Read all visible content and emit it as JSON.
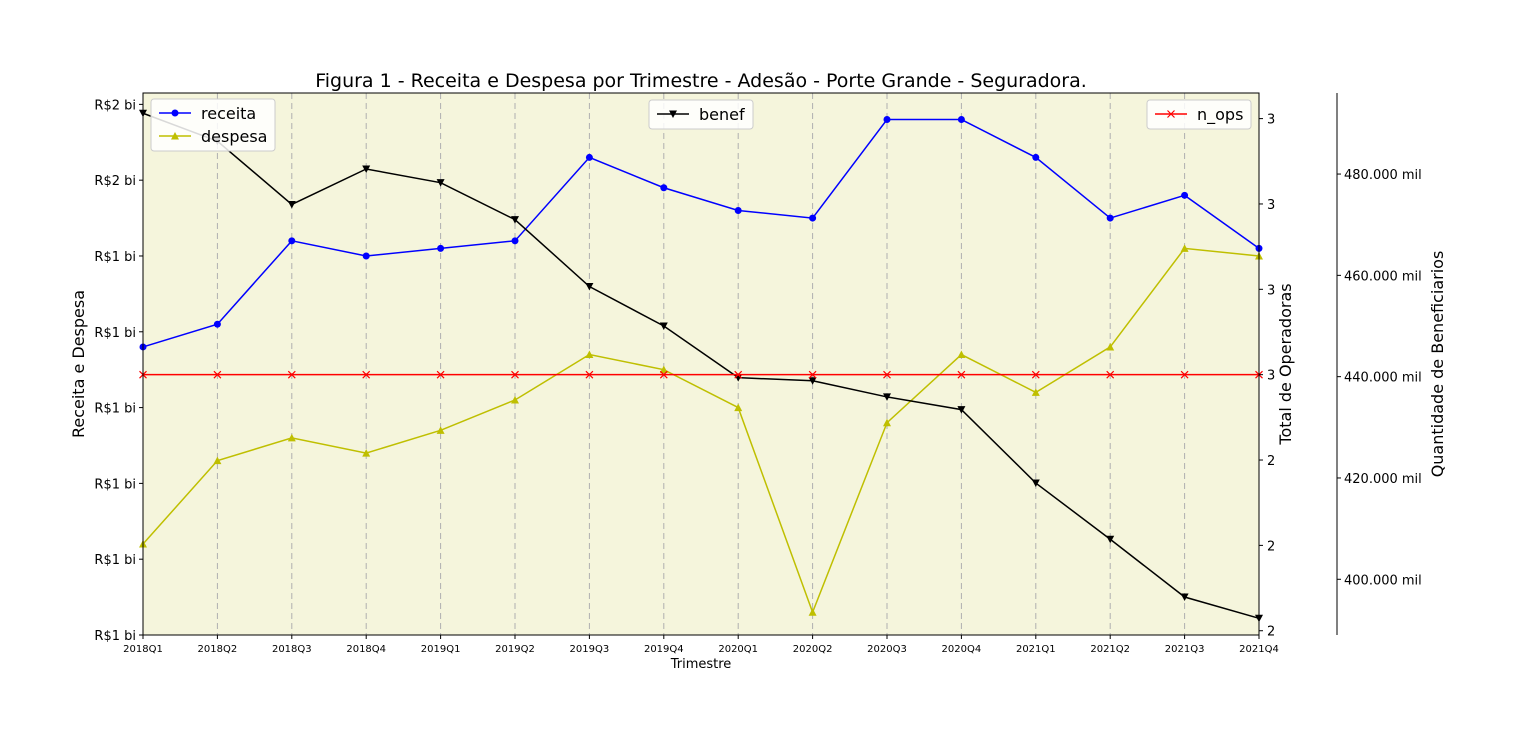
{
  "chart_data": {
    "type": "line",
    "title": "Figura 1 - Receita e Despesa por Trimestre - Adesão - Porte Grande - Seguradora.",
    "xlabel": "Trimestre",
    "categories": [
      "2018Q1",
      "2018Q2",
      "2018Q3",
      "2018Q4",
      "2019Q1",
      "2019Q2",
      "2019Q3",
      "2019Q4",
      "2020Q1",
      "2020Q2",
      "2020Q3",
      "2020Q4",
      "2021Q1",
      "2021Q2",
      "2021Q3",
      "2021Q4"
    ],
    "grid": "vertical dashed lines at each quarter",
    "background_color": "#f5f5dc",
    "axes": {
      "left": {
        "label": "Receita e Despesa",
        "ticks": [
          "R$1 bi",
          "R$1 bi",
          "R$1 bi",
          "R$1 bi",
          "R$1 bi",
          "R$1 bi",
          "R$2 bi",
          "R$2 bi"
        ],
        "tick_values": [
          1.35,
          1.45,
          1.55,
          1.65,
          1.75,
          1.85,
          1.95,
          2.05
        ],
        "ylim": [
          1.35,
          2.065
        ]
      },
      "right1": {
        "label": "Total de Operadoras",
        "ticks": [
          "2",
          "2",
          "2",
          "3",
          "3",
          "3",
          "3"
        ],
        "tick_values": [
          2.4,
          2.6,
          2.8,
          3.0,
          3.2,
          3.4,
          3.6
        ],
        "ylim": [
          2.39,
          3.66
        ]
      },
      "right2": {
        "label": "Quantidade de Beneficiarios",
        "ticks": [
          "400.000 mil",
          "420.000 mil",
          "440.000 mil",
          "460.000 mil",
          "480.000 mil"
        ],
        "tick_values": [
          400000,
          420000,
          440000,
          460000,
          480000
        ],
        "ylim": [
          389000,
          496000
        ]
      }
    },
    "series": [
      {
        "name": "receita",
        "axis": "left",
        "color": "#0000ff",
        "marker": "circle",
        "values": [
          1.73,
          1.76,
          1.87,
          1.85,
          1.86,
          1.87,
          1.98,
          1.94,
          1.91,
          1.9,
          2.03,
          2.03,
          1.98,
          1.9,
          1.93,
          1.86
        ]
      },
      {
        "name": "despesa",
        "axis": "left",
        "color": "#bfbf00",
        "marker": "triangle-up",
        "values": [
          1.47,
          1.58,
          1.61,
          1.59,
          1.62,
          1.66,
          1.72,
          1.7,
          1.65,
          1.38,
          1.63,
          1.72,
          1.67,
          1.73,
          1.86,
          1.85
        ]
      },
      {
        "name": "benef",
        "axis": "right2",
        "color": "#000000",
        "marker": "triangle-down",
        "values": [
          492000,
          486500,
          474000,
          481000,
          478300,
          471000,
          457800,
          450000,
          439800,
          439200,
          436000,
          433500,
          419000,
          407900,
          396500,
          392300
        ]
      },
      {
        "name": "n_ops",
        "axis": "right1",
        "color": "#ff0000",
        "marker": "x",
        "values": [
          3,
          3,
          3,
          3,
          3,
          3,
          3,
          3,
          3,
          3,
          3,
          3,
          3,
          3,
          3,
          3
        ]
      }
    ],
    "legends": [
      {
        "position": "upper-left",
        "entries": [
          "receita",
          "despesa"
        ]
      },
      {
        "position": "upper-center",
        "entries": [
          "benef"
        ]
      },
      {
        "position": "upper-right",
        "entries": [
          "n_ops"
        ]
      }
    ]
  }
}
